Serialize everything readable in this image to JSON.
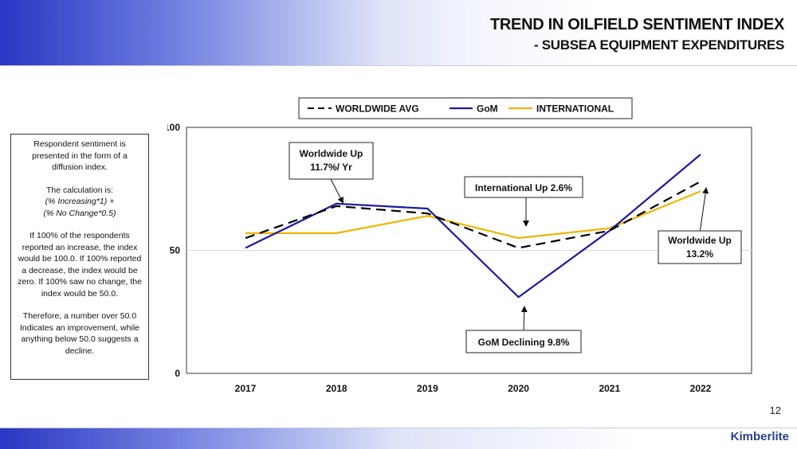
{
  "header": {
    "title_line1": "TREND IN OILFIELD SENTIMENT INDEX",
    "title_line2": "- SUBSEA EQUIPMENT EXPENDITURES"
  },
  "info_box": {
    "p1": "Respondent sentiment is presented in the form of a diffusion index.",
    "p2": "The calculation is:",
    "formula_line1": "(% Increasing*1) +",
    "formula_line2": "(% No Change*0.5)",
    "p3": "If 100% of the respondents reported  an increase, the index would be 100.0. If 100% reported  a decrease, the index would be zero.  If 100% saw no change, the index would be 50.0.",
    "p4": "Therefore, a number  over 50.0 Indicates an improvement, while anything below 50.0 suggests a decline."
  },
  "page_number": "12",
  "brand": "Kimberlite",
  "chart_data": {
    "type": "line",
    "categories": [
      "2017",
      "2018",
      "2019",
      "2020",
      "2021",
      "2022"
    ],
    "ylim": [
      0,
      100
    ],
    "yticks": [
      "0",
      "50",
      "100"
    ],
    "grid": "horizontal at 50",
    "legend_placement": "top-center",
    "series": [
      {
        "name": "WORLDWIDE AVG",
        "color": "#000000",
        "dash": "dashed",
        "values": [
          55,
          68,
          65,
          51,
          58,
          78
        ]
      },
      {
        "name": "GoM",
        "color": "#1a1aa0",
        "dash": "solid",
        "values": [
          51,
          69,
          67,
          31,
          58,
          89
        ]
      },
      {
        "name": "INTERNATIONAL",
        "color": "#f0b400",
        "dash": "solid",
        "values": [
          57,
          57,
          64,
          55,
          59,
          74
        ]
      }
    ],
    "annotations": [
      {
        "line1": "Worldwide Up",
        "line2": "11.7%/ Yr",
        "target": "2018"
      },
      {
        "line1": "International Up 2.6%",
        "line2": "",
        "target": "2020"
      },
      {
        "line1": "Worldwide Up",
        "line2": "13.2%",
        "target": "2022"
      },
      {
        "line1": "GoM Declining 9.8%",
        "line2": "",
        "target": "2020"
      }
    ]
  }
}
